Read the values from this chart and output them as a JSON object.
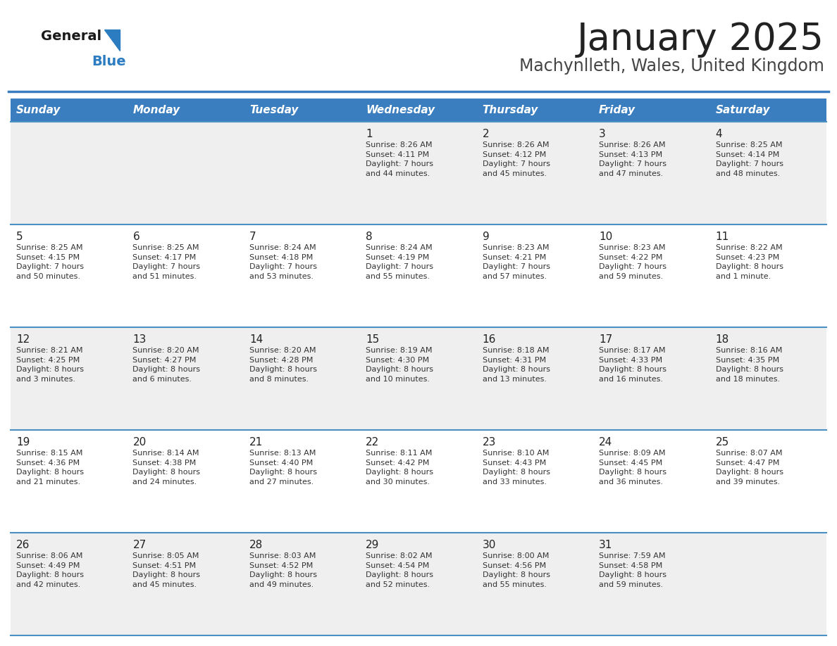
{
  "title": "January 2025",
  "subtitle": "Machynlleth, Wales, United Kingdom",
  "days_of_week": [
    "Sunday",
    "Monday",
    "Tuesday",
    "Wednesday",
    "Thursday",
    "Friday",
    "Saturday"
  ],
  "header_bg": "#3a7ebf",
  "header_text_color": "#ffffff",
  "cell_bg_light": "#efefef",
  "cell_bg_white": "#ffffff",
  "cell_border_color": "#4a90c4",
  "title_color": "#222222",
  "subtitle_color": "#444444",
  "day_num_color": "#222222",
  "cell_text_color": "#333333",
  "logo_general_color": "#1a1a1a",
  "logo_blue_color": "#2b7cc1",
  "logo_triangle_color": "#2b7cc1",
  "weeks": [
    [
      {
        "day": null,
        "sunrise": null,
        "sunset": null,
        "daylight": null
      },
      {
        "day": null,
        "sunrise": null,
        "sunset": null,
        "daylight": null
      },
      {
        "day": null,
        "sunrise": null,
        "sunset": null,
        "daylight": null
      },
      {
        "day": 1,
        "sunrise": "Sunrise: 8:26 AM",
        "sunset": "Sunset: 4:11 PM",
        "daylight": "Daylight: 7 hours\nand 44 minutes."
      },
      {
        "day": 2,
        "sunrise": "Sunrise: 8:26 AM",
        "sunset": "Sunset: 4:12 PM",
        "daylight": "Daylight: 7 hours\nand 45 minutes."
      },
      {
        "day": 3,
        "sunrise": "Sunrise: 8:26 AM",
        "sunset": "Sunset: 4:13 PM",
        "daylight": "Daylight: 7 hours\nand 47 minutes."
      },
      {
        "day": 4,
        "sunrise": "Sunrise: 8:25 AM",
        "sunset": "Sunset: 4:14 PM",
        "daylight": "Daylight: 7 hours\nand 48 minutes."
      }
    ],
    [
      {
        "day": 5,
        "sunrise": "Sunrise: 8:25 AM",
        "sunset": "Sunset: 4:15 PM",
        "daylight": "Daylight: 7 hours\nand 50 minutes."
      },
      {
        "day": 6,
        "sunrise": "Sunrise: 8:25 AM",
        "sunset": "Sunset: 4:17 PM",
        "daylight": "Daylight: 7 hours\nand 51 minutes."
      },
      {
        "day": 7,
        "sunrise": "Sunrise: 8:24 AM",
        "sunset": "Sunset: 4:18 PM",
        "daylight": "Daylight: 7 hours\nand 53 minutes."
      },
      {
        "day": 8,
        "sunrise": "Sunrise: 8:24 AM",
        "sunset": "Sunset: 4:19 PM",
        "daylight": "Daylight: 7 hours\nand 55 minutes."
      },
      {
        "day": 9,
        "sunrise": "Sunrise: 8:23 AM",
        "sunset": "Sunset: 4:21 PM",
        "daylight": "Daylight: 7 hours\nand 57 minutes."
      },
      {
        "day": 10,
        "sunrise": "Sunrise: 8:23 AM",
        "sunset": "Sunset: 4:22 PM",
        "daylight": "Daylight: 7 hours\nand 59 minutes."
      },
      {
        "day": 11,
        "sunrise": "Sunrise: 8:22 AM",
        "sunset": "Sunset: 4:23 PM",
        "daylight": "Daylight: 8 hours\nand 1 minute."
      }
    ],
    [
      {
        "day": 12,
        "sunrise": "Sunrise: 8:21 AM",
        "sunset": "Sunset: 4:25 PM",
        "daylight": "Daylight: 8 hours\nand 3 minutes."
      },
      {
        "day": 13,
        "sunrise": "Sunrise: 8:20 AM",
        "sunset": "Sunset: 4:27 PM",
        "daylight": "Daylight: 8 hours\nand 6 minutes."
      },
      {
        "day": 14,
        "sunrise": "Sunrise: 8:20 AM",
        "sunset": "Sunset: 4:28 PM",
        "daylight": "Daylight: 8 hours\nand 8 minutes."
      },
      {
        "day": 15,
        "sunrise": "Sunrise: 8:19 AM",
        "sunset": "Sunset: 4:30 PM",
        "daylight": "Daylight: 8 hours\nand 10 minutes."
      },
      {
        "day": 16,
        "sunrise": "Sunrise: 8:18 AM",
        "sunset": "Sunset: 4:31 PM",
        "daylight": "Daylight: 8 hours\nand 13 minutes."
      },
      {
        "day": 17,
        "sunrise": "Sunrise: 8:17 AM",
        "sunset": "Sunset: 4:33 PM",
        "daylight": "Daylight: 8 hours\nand 16 minutes."
      },
      {
        "day": 18,
        "sunrise": "Sunrise: 8:16 AM",
        "sunset": "Sunset: 4:35 PM",
        "daylight": "Daylight: 8 hours\nand 18 minutes."
      }
    ],
    [
      {
        "day": 19,
        "sunrise": "Sunrise: 8:15 AM",
        "sunset": "Sunset: 4:36 PM",
        "daylight": "Daylight: 8 hours\nand 21 minutes."
      },
      {
        "day": 20,
        "sunrise": "Sunrise: 8:14 AM",
        "sunset": "Sunset: 4:38 PM",
        "daylight": "Daylight: 8 hours\nand 24 minutes."
      },
      {
        "day": 21,
        "sunrise": "Sunrise: 8:13 AM",
        "sunset": "Sunset: 4:40 PM",
        "daylight": "Daylight: 8 hours\nand 27 minutes."
      },
      {
        "day": 22,
        "sunrise": "Sunrise: 8:11 AM",
        "sunset": "Sunset: 4:42 PM",
        "daylight": "Daylight: 8 hours\nand 30 minutes."
      },
      {
        "day": 23,
        "sunrise": "Sunrise: 8:10 AM",
        "sunset": "Sunset: 4:43 PM",
        "daylight": "Daylight: 8 hours\nand 33 minutes."
      },
      {
        "day": 24,
        "sunrise": "Sunrise: 8:09 AM",
        "sunset": "Sunset: 4:45 PM",
        "daylight": "Daylight: 8 hours\nand 36 minutes."
      },
      {
        "day": 25,
        "sunrise": "Sunrise: 8:07 AM",
        "sunset": "Sunset: 4:47 PM",
        "daylight": "Daylight: 8 hours\nand 39 minutes."
      }
    ],
    [
      {
        "day": 26,
        "sunrise": "Sunrise: 8:06 AM",
        "sunset": "Sunset: 4:49 PM",
        "daylight": "Daylight: 8 hours\nand 42 minutes."
      },
      {
        "day": 27,
        "sunrise": "Sunrise: 8:05 AM",
        "sunset": "Sunset: 4:51 PM",
        "daylight": "Daylight: 8 hours\nand 45 minutes."
      },
      {
        "day": 28,
        "sunrise": "Sunrise: 8:03 AM",
        "sunset": "Sunset: 4:52 PM",
        "daylight": "Daylight: 8 hours\nand 49 minutes."
      },
      {
        "day": 29,
        "sunrise": "Sunrise: 8:02 AM",
        "sunset": "Sunset: 4:54 PM",
        "daylight": "Daylight: 8 hours\nand 52 minutes."
      },
      {
        "day": 30,
        "sunrise": "Sunrise: 8:00 AM",
        "sunset": "Sunset: 4:56 PM",
        "daylight": "Daylight: 8 hours\nand 55 minutes."
      },
      {
        "day": 31,
        "sunrise": "Sunrise: 7:59 AM",
        "sunset": "Sunset: 4:58 PM",
        "daylight": "Daylight: 8 hours\nand 59 minutes."
      },
      {
        "day": null,
        "sunrise": null,
        "sunset": null,
        "daylight": null
      }
    ]
  ]
}
